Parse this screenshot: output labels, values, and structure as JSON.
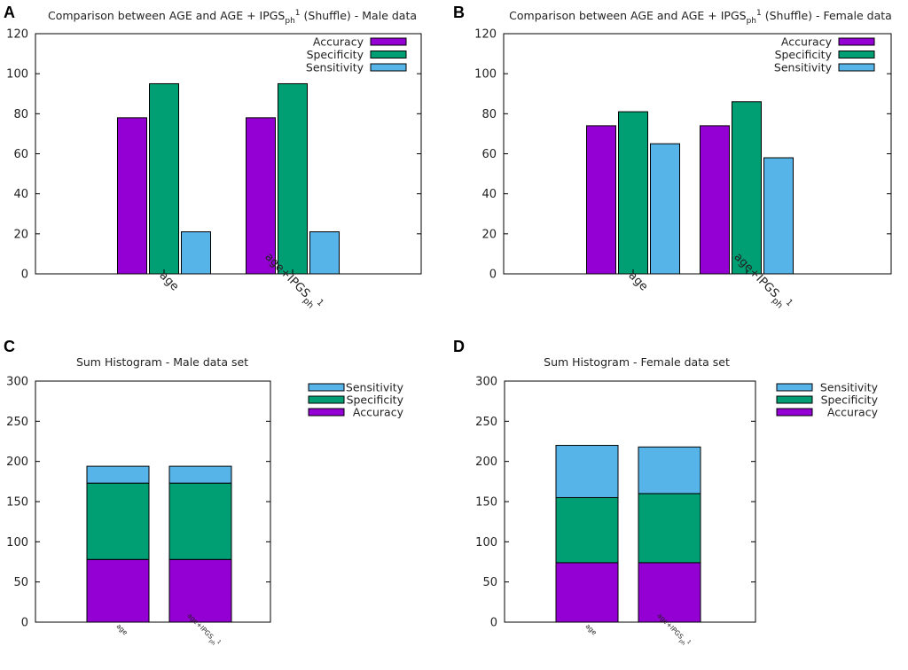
{
  "colors": {
    "accuracy": "#9400d3",
    "specificity": "#009e73",
    "sensitivity": "#56b4e9"
  },
  "chart_data": [
    {
      "panel": "A",
      "type": "bar",
      "title": "Comparison between AGE and AGE + IPGSph1 (Shuffle) - Male data",
      "title_main": "Comparison between AGE and AGE + IPGS",
      "title_sub": "ph",
      "title_sup": "1",
      "title_tail": " (Shuffle) - Male data",
      "ylim": [
        0,
        120
      ],
      "yticks": [
        "0",
        "20",
        "40",
        "60",
        "80",
        "100",
        "120"
      ],
      "categories": [
        "age",
        "age+IPGSph1"
      ],
      "category_labels": [
        {
          "main": "age",
          "sub": "",
          "sup": ""
        },
        {
          "main": "age+IPGS",
          "sub": "ph",
          "sup": "1"
        }
      ],
      "legend": [
        "Accuracy",
        "Specificity",
        "Sensitivity"
      ],
      "series": [
        {
          "name": "Accuracy",
          "values": [
            78,
            78
          ]
        },
        {
          "name": "Specificity",
          "values": [
            95,
            95
          ]
        },
        {
          "name": "Sensitivity",
          "values": [
            21,
            21
          ]
        }
      ]
    },
    {
      "panel": "B",
      "type": "bar",
      "title": "Comparison between AGE and AGE + IPGSph1 (Shuffle) - Female data",
      "title_main": "Comparison between AGE and AGE + IPGS",
      "title_sub": "ph",
      "title_sup": "1",
      "title_tail": " (Shuffle) - Female data",
      "ylim": [
        0,
        120
      ],
      "yticks": [
        "0",
        "20",
        "40",
        "60",
        "80",
        "100",
        "120"
      ],
      "categories": [
        "age",
        "age+IPGSph1"
      ],
      "category_labels": [
        {
          "main": "age",
          "sub": "",
          "sup": ""
        },
        {
          "main": "age+IPGS",
          "sub": "ph",
          "sup": "1"
        }
      ],
      "legend": [
        "Accuracy",
        "Specificity",
        "Sensitivity"
      ],
      "series": [
        {
          "name": "Accuracy",
          "values": [
            74,
            74
          ]
        },
        {
          "name": "Specificity",
          "values": [
            81,
            86
          ]
        },
        {
          "name": "Sensitivity",
          "values": [
            65,
            58
          ]
        }
      ]
    },
    {
      "panel": "C",
      "type": "bar",
      "stacked": true,
      "title": "Sum Histogram - Male data set",
      "title_main": "Sum Histogram - Male data set",
      "title_sub": "",
      "title_sup": "",
      "title_tail": "",
      "ylim": [
        0,
        300
      ],
      "yticks": [
        "0",
        "50",
        "100",
        "150",
        "200",
        "250",
        "300"
      ],
      "categories": [
        "age",
        "age+IPGSph1"
      ],
      "category_labels": [
        {
          "main": "age",
          "sub": "",
          "sup": ""
        },
        {
          "main": "age+IPGS",
          "sub": "ph",
          "sup": "1"
        }
      ],
      "legend": [
        "Sensitivity",
        "Specificity",
        "Accuracy"
      ],
      "series": [
        {
          "name": "Accuracy",
          "values": [
            78,
            78
          ]
        },
        {
          "name": "Specificity",
          "values": [
            95,
            95
          ]
        },
        {
          "name": "Sensitivity",
          "values": [
            21,
            21
          ]
        }
      ]
    },
    {
      "panel": "D",
      "type": "bar",
      "stacked": true,
      "title": "Sum Histogram - Female data set",
      "title_main": "Sum Histogram - Female data set",
      "title_sub": "",
      "title_sup": "",
      "title_tail": "",
      "ylim": [
        0,
        300
      ],
      "yticks": [
        "0",
        "50",
        "100",
        "150",
        "200",
        "250",
        "300"
      ],
      "categories": [
        "age",
        "age+IPGSph1"
      ],
      "category_labels": [
        {
          "main": "age",
          "sub": "",
          "sup": ""
        },
        {
          "main": "age+IPGS",
          "sub": "ph",
          "sup": "1"
        }
      ],
      "legend": [
        "Sensitivity",
        "Specificity",
        "Accuracy"
      ],
      "series": [
        {
          "name": "Accuracy",
          "values": [
            74,
            74
          ]
        },
        {
          "name": "Specificity",
          "values": [
            81,
            86
          ]
        },
        {
          "name": "Sensitivity",
          "values": [
            65,
            58
          ]
        }
      ]
    }
  ]
}
